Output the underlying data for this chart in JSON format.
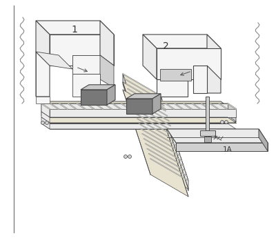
{
  "bg_color": "#ffffff",
  "lc": "#444444",
  "fill_white": "#f5f5f5",
  "fill_light": "#ebebeb",
  "fill_mid": "#d0d0d0",
  "fill_dark": "#b0b0b0",
  "fill_darker": "#909090",
  "box_top": "#c8c8c8",
  "box_front": "#787878",
  "box_side": "#a8a8a8",
  "conveyor_top": "#e8e2d0",
  "conveyor_side": "#c8bc98",
  "roller_fill": "#e0d8c0",
  "roller_edge": "#888880",
  "label1": "1",
  "label2": "2",
  "label1A": "1A",
  "figsize": [
    4.0,
    3.45
  ],
  "dpi": 100
}
